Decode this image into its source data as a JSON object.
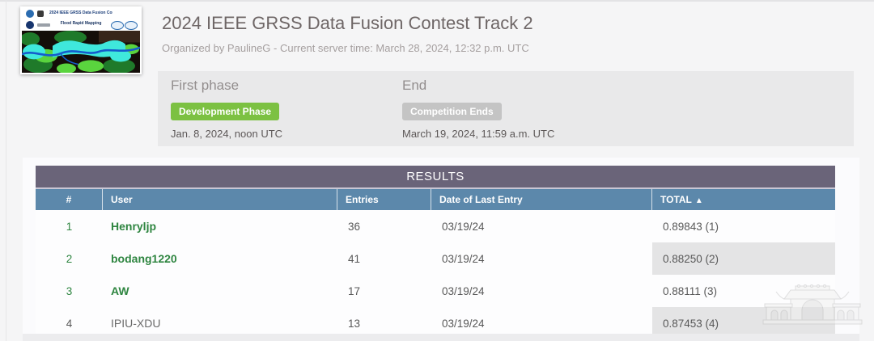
{
  "header": {
    "title": "2024 IEEE GRSS Data Fusion Contest Track 2",
    "subtitle": "Organized by PaulineG - Current server time: March 28, 2024, 12:32 p.m. UTC"
  },
  "banner": {
    "line1": "2024 IEEE GRSS Data Fusion Contest",
    "line2": "Flood Rapid Mapping"
  },
  "phases": {
    "first_phase": {
      "heading": "First phase",
      "badge_label": "Development Phase",
      "badge_color": "#7cc142",
      "date": "Jan. 8, 2024, noon UTC"
    },
    "end_phase": {
      "heading": "End",
      "badge_label": "Competition Ends",
      "badge_color": "#c4c4c4",
      "date": "March 19, 2024, 11:59 a.m. UTC"
    }
  },
  "results": {
    "title": "RESULTS",
    "columns": {
      "rank": "#",
      "user": "User",
      "entries": "Entries",
      "date": "Date of Last Entry",
      "total": "TOTAL"
    },
    "sort_icon": "▲",
    "rows": [
      {
        "rank": "1",
        "user": "Henryljp",
        "entries": "36",
        "date": "03/19/24",
        "total": "0.89843 (1)",
        "user_link": true,
        "total_highlight": false
      },
      {
        "rank": "2",
        "user": "bodang1220",
        "entries": "41",
        "date": "03/19/24",
        "total": "0.88250 (2)",
        "user_link": true,
        "total_highlight": true
      },
      {
        "rank": "3",
        "user": "AW",
        "entries": "17",
        "date": "03/19/24",
        "total": "0.88111 (3)",
        "user_link": true,
        "total_highlight": false
      },
      {
        "rank": "4",
        "user": "IPIU-XDU",
        "entries": "13",
        "date": "03/19/24",
        "total": "0.87453 (4)",
        "user_link": false,
        "total_highlight": true
      }
    ]
  },
  "colors": {
    "results_bar": "#6a6479",
    "table_header": "#5c88ab",
    "link_green": "#2e8540",
    "highlight_cell": "#e4e4e5",
    "phase_panel": "#e9e9ea"
  }
}
